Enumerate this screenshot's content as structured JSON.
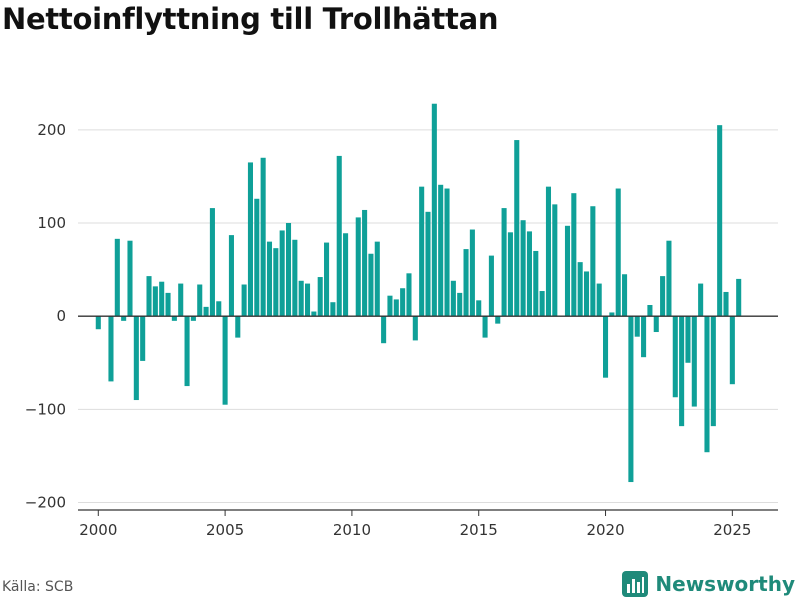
{
  "chart_data": {
    "type": "bar",
    "title": "Nettoinflyttning till Trollhättan",
    "source": "Källa: SCB",
    "brand": "Newsworthy",
    "colors": {
      "bar": "#0fa098",
      "grid": "#dddddd",
      "zero": "#333333",
      "brand": "#1f8a7a"
    },
    "xlim": [
      1999.2,
      2026.8
    ],
    "ylim": [
      -208,
      232
    ],
    "yticks": [
      -200,
      -100,
      0,
      100,
      200
    ],
    "ytick_labels": [
      "−200",
      "−100",
      "0",
      "100",
      "200"
    ],
    "xticks": [
      2000,
      2005,
      2010,
      2015,
      2020,
      2025
    ],
    "xtick_labels": [
      "2000",
      "2005",
      "2010",
      "2015",
      "2020",
      "2025"
    ],
    "grid": true,
    "frequency": "quarterly",
    "x": [
      "2000 Q1",
      "2000 Q2",
      "2000 Q3",
      "2000 Q4",
      "2001 Q1",
      "2001 Q2",
      "2001 Q3",
      "2001 Q4",
      "2002 Q1",
      "2002 Q2",
      "2002 Q3",
      "2002 Q4",
      "2003 Q1",
      "2003 Q2",
      "2003 Q3",
      "2003 Q4",
      "2004 Q1",
      "2004 Q2",
      "2004 Q3",
      "2004 Q4",
      "2005 Q1",
      "2005 Q2",
      "2005 Q3",
      "2005 Q4",
      "2006 Q1",
      "2006 Q2",
      "2006 Q3",
      "2006 Q4",
      "2007 Q1",
      "2007 Q2",
      "2007 Q3",
      "2007 Q4",
      "2008 Q1",
      "2008 Q2",
      "2008 Q3",
      "2008 Q4",
      "2009 Q1",
      "2009 Q2",
      "2009 Q3",
      "2009 Q4",
      "2010 Q1",
      "2010 Q2",
      "2010 Q3",
      "2010 Q4",
      "2011 Q1",
      "2011 Q2",
      "2011 Q3",
      "2011 Q4",
      "2012 Q1",
      "2012 Q2",
      "2012 Q3",
      "2012 Q4",
      "2013 Q1",
      "2013 Q2",
      "2013 Q3",
      "2013 Q4",
      "2014 Q1",
      "2014 Q2",
      "2014 Q3",
      "2014 Q4",
      "2015 Q1",
      "2015 Q2",
      "2015 Q3",
      "2015 Q4",
      "2016 Q1",
      "2016 Q2",
      "2016 Q3",
      "2016 Q4",
      "2017 Q1",
      "2017 Q2",
      "2017 Q3",
      "2017 Q4",
      "2018 Q1",
      "2018 Q2",
      "2018 Q3",
      "2018 Q4",
      "2019 Q1",
      "2019 Q2",
      "2019 Q3",
      "2019 Q4",
      "2020 Q1",
      "2020 Q2",
      "2020 Q3",
      "2020 Q4",
      "2021 Q1",
      "2021 Q2",
      "2021 Q3",
      "2021 Q4",
      "2022 Q1",
      "2022 Q2",
      "2022 Q3",
      "2022 Q4",
      "2023 Q1",
      "2023 Q2",
      "2023 Q3",
      "2023 Q4",
      "2024 Q1",
      "2024 Q2",
      "2024 Q3",
      "2024 Q4",
      "2025 Q1",
      "2025 Q2"
    ],
    "values": [
      -14,
      0,
      -70,
      83,
      -5,
      81,
      -90,
      -48,
      43,
      32,
      37,
      25,
      -5,
      35,
      -75,
      -5,
      34,
      10,
      116,
      16,
      -95,
      87,
      -23,
      34,
      165,
      126,
      170,
      80,
      73,
      92,
      100,
      82,
      38,
      35,
      5,
      42,
      79,
      15,
      172,
      89,
      0,
      106,
      114,
      67,
      80,
      -29,
      22,
      18,
      30,
      46,
      -26,
      139,
      112,
      228,
      141,
      137,
      38,
      25,
      72,
      93,
      17,
      -23,
      65,
      -8,
      116,
      90,
      189,
      103,
      91,
      70,
      27,
      139,
      120,
      0,
      97,
      132,
      58,
      48,
      118,
      35,
      -66,
      4,
      137,
      45,
      -178,
      -22,
      -44,
      12,
      -17,
      43,
      81,
      -87,
      -118,
      -50,
      -97,
      35,
      -146,
      -118,
      205,
      26,
      -73,
      40
    ]
  }
}
